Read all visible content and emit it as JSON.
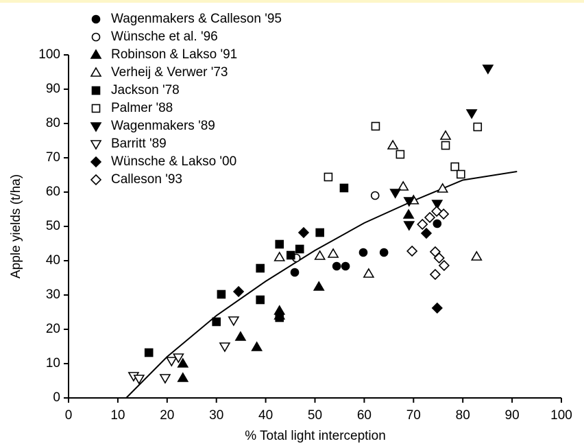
{
  "chart_data": {
    "type": "scatter",
    "xlabel": "% Total light interception",
    "ylabel": "Apple yields (t/ha)",
    "xlim": [
      0,
      100
    ],
    "ylim": [
      0,
      100
    ],
    "xticks": [
      0,
      10,
      20,
      30,
      40,
      50,
      60,
      70,
      80,
      90,
      100
    ],
    "yticks": [
      0,
      10,
      20,
      30,
      40,
      50,
      60,
      70,
      80,
      90,
      100
    ],
    "color": "#000000",
    "series": [
      {
        "name": "Wagenmakers & Calleson '95",
        "marker": "circle",
        "filled": true,
        "x": [
          45.9,
          54.4,
          56.2,
          59.8,
          64.0,
          74.8
        ],
        "values": [
          36.6,
          38.4,
          38.4,
          42.4,
          42.4,
          50.8
        ]
      },
      {
        "name": "Wünsche et al. '96",
        "marker": "circle",
        "filled": false,
        "x": [
          46.2,
          62.2
        ],
        "values": [
          40.8,
          59.0
        ]
      },
      {
        "name": "Robinson & Lakso '91",
        "marker": "triangle-up",
        "filled": true,
        "x": [
          23.2,
          23.2,
          34.9,
          38.2,
          42.8,
          42.8,
          50.8,
          69.0
        ],
        "values": [
          5.8,
          10,
          17.8,
          14.8,
          25.4,
          24,
          32.4,
          53.4
        ]
      },
      {
        "name": "Verheij & Verwer '73",
        "marker": "triangle-up",
        "filled": false,
        "x": [
          42.8,
          51.0,
          53.7,
          60.9,
          65.8,
          67.9,
          70.0,
          76.5,
          75.9,
          82.8
        ],
        "values": [
          41,
          41.4,
          42,
          36.2,
          73.6,
          61.6,
          57.6,
          76.4,
          61,
          41.2
        ]
      },
      {
        "name": "Jackson '78",
        "marker": "square",
        "filled": true,
        "x": [
          16.3,
          30.0,
          31.0,
          38.9,
          38.9,
          42.8,
          42.8,
          45.1,
          46.9,
          51.0,
          55.9
        ],
        "values": [
          13.2,
          22.2,
          30.2,
          28.6,
          37.8,
          44.8,
          23.4,
          41.6,
          43.4,
          48.2,
          61.2
        ]
      },
      {
        "name": "Palmer '88",
        "marker": "square",
        "filled": false,
        "x": [
          52.7,
          62.3,
          67.3,
          76.5,
          78.4,
          79.6,
          83.0
        ],
        "values": [
          64.4,
          79.2,
          71,
          73.6,
          67.4,
          65.2,
          79
        ]
      },
      {
        "name": "Wagenmakers '89",
        "marker": "triangle-down",
        "filled": true,
        "x": [
          66.3,
          69.1,
          69.1,
          74.8,
          81.8,
          85.1
        ],
        "values": [
          59.8,
          57.4,
          50.4,
          56.6,
          83,
          96
        ]
      },
      {
        "name": "Barritt '89",
        "marker": "triangle-down",
        "filled": false,
        "x": [
          13.2,
          14.3,
          19.6,
          20.9,
          22.3,
          31.7,
          33.5
        ],
        "values": [
          6.4,
          5.6,
          5.8,
          10.8,
          11.8,
          15,
          22.6
        ]
      },
      {
        "name": "Wünsche & Lakso '00",
        "marker": "diamond",
        "filled": true,
        "x": [
          34.5,
          47.7,
          72.6,
          74.8
        ],
        "values": [
          31,
          48.2,
          48,
          26.2
        ]
      },
      {
        "name": "Calleson '93",
        "marker": "diamond",
        "filled": false,
        "x": [
          69.7,
          71.8,
          73.3,
          74.7,
          76.1,
          74.4,
          74.4,
          75.2,
          76.2
        ],
        "values": [
          42.8,
          50.6,
          52.6,
          54.4,
          53.6,
          42.6,
          36,
          40.8,
          38.6
        ]
      }
    ],
    "fit": {
      "x": [
        11.7,
        20,
        30,
        40,
        50,
        60,
        70,
        80,
        91
      ],
      "values": [
        0,
        12,
        24,
        34,
        43,
        51,
        57.5,
        63.5,
        66
      ]
    }
  }
}
